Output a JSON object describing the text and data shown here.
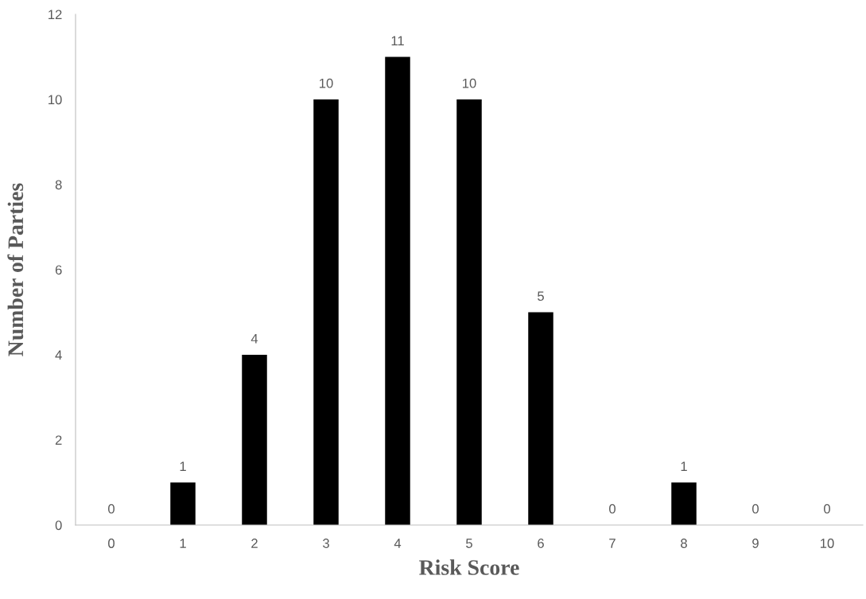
{
  "chart_data": {
    "type": "bar",
    "xlabel": "Risk Score",
    "ylabel": "Number of Parties",
    "categories": [
      "0",
      "1",
      "2",
      "3",
      "4",
      "5",
      "6",
      "7",
      "8",
      "9",
      "10"
    ],
    "values": [
      0,
      1,
      4,
      10,
      11,
      10,
      5,
      0,
      1,
      0,
      0
    ],
    "color": "#000000",
    "ylim": [
      0,
      12
    ],
    "yticks": [
      0,
      2,
      4,
      6,
      8,
      10,
      12
    ],
    "grid": false,
    "data_labels": true
  }
}
